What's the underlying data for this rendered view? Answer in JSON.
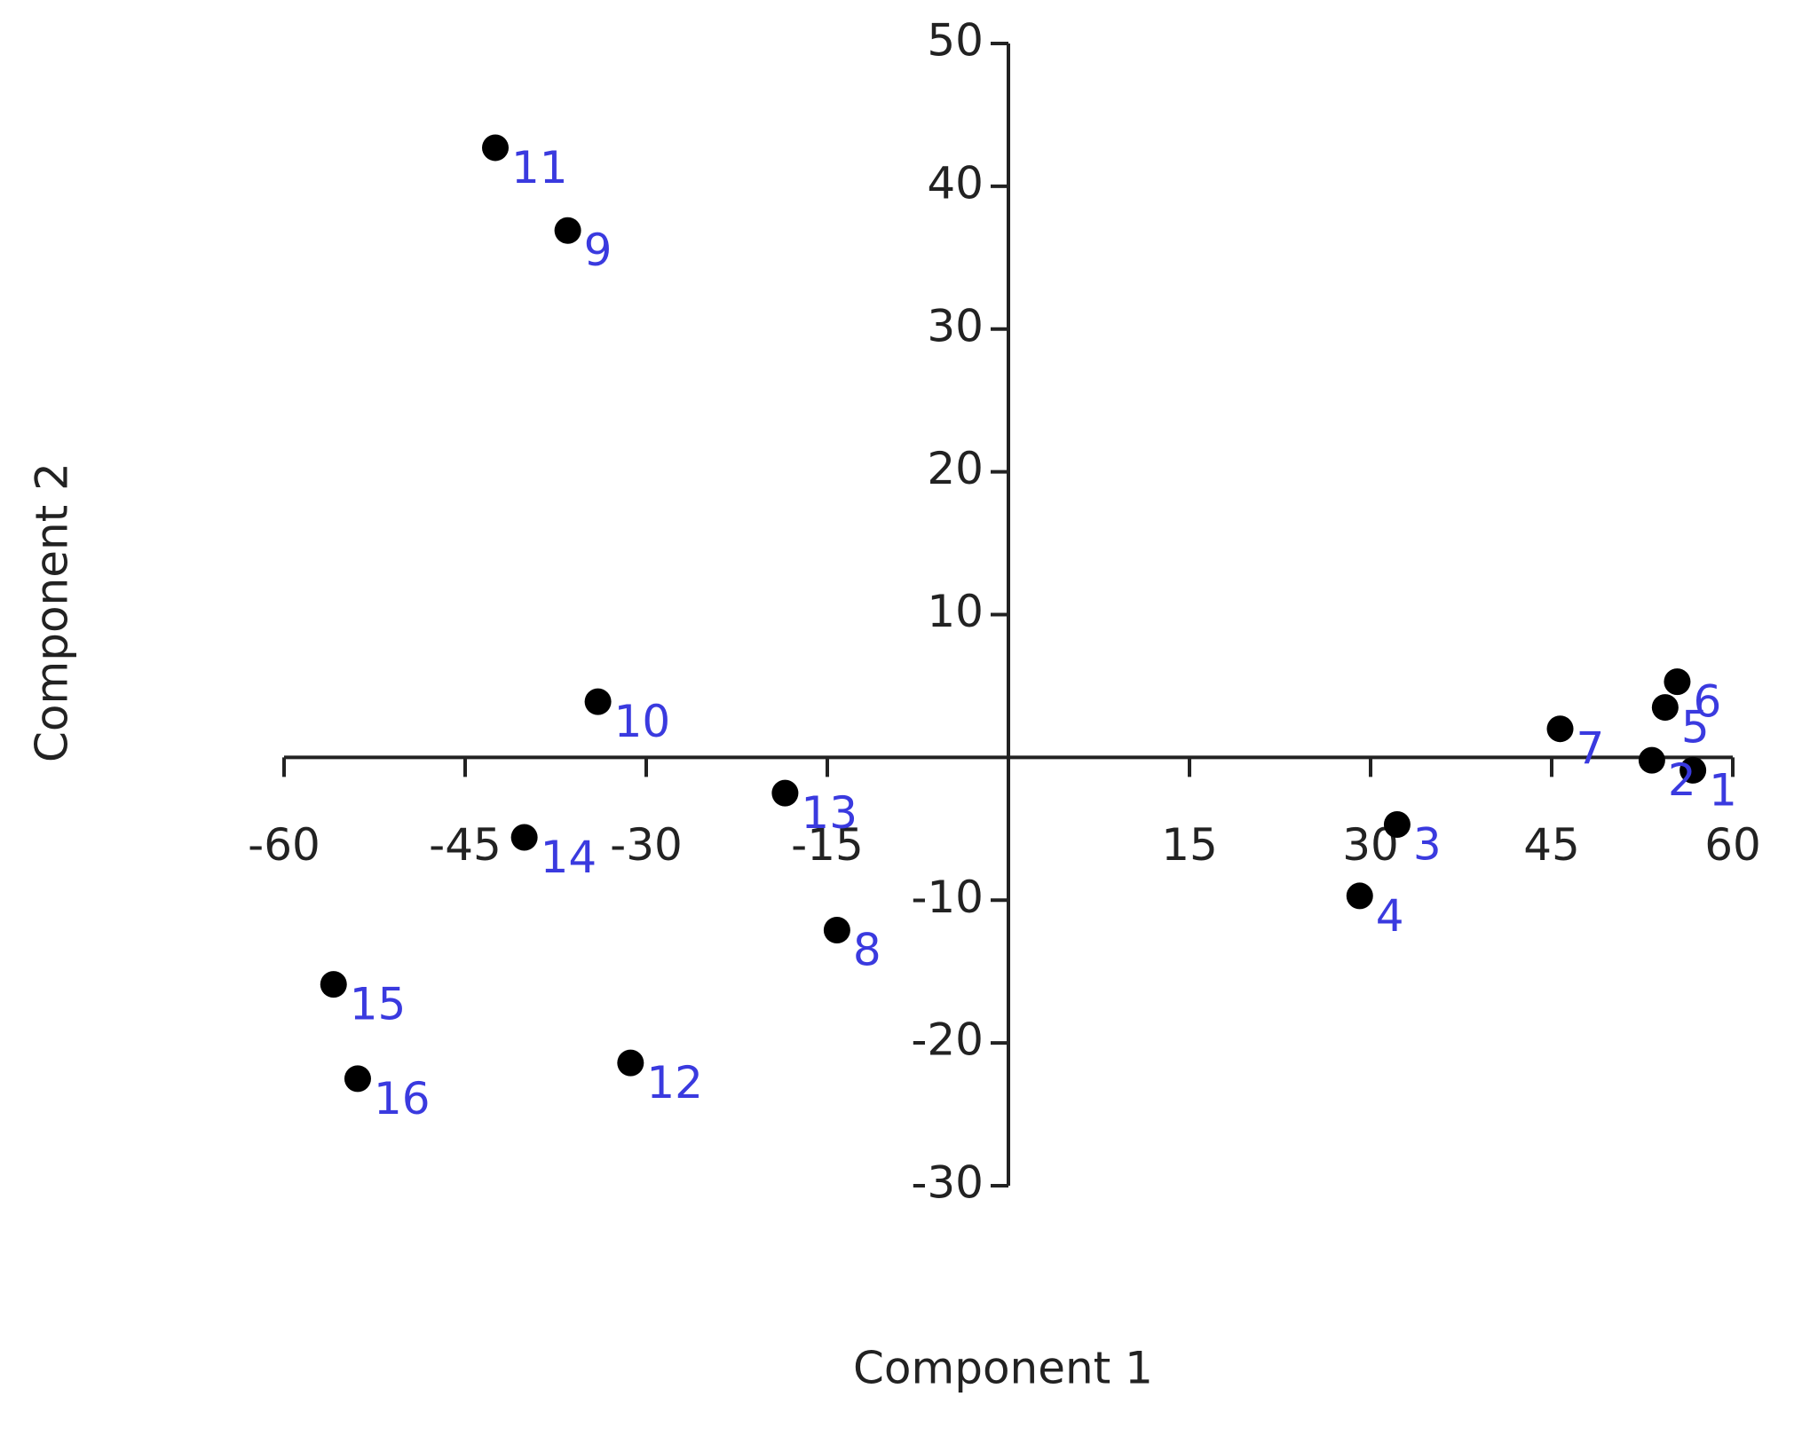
{
  "chart_data": {
    "type": "scatter",
    "x_label": "Component 1",
    "y_label": "Component 2",
    "labels": [
      "1",
      "2",
      "3",
      "4",
      "5",
      "6",
      "7",
      "8",
      "9",
      "10",
      "11",
      "12",
      "13",
      "14",
      "15",
      "16"
    ],
    "x": [
      56.7,
      53.3,
      32.2,
      29.1,
      54.4,
      55.4,
      45.7,
      -14.2,
      -36.5,
      -34.0,
      -42.5,
      -31.3,
      -18.5,
      -40.1,
      -55.9,
      -53.9
    ],
    "values": [
      -0.9,
      -0.2,
      -4.7,
      -9.7,
      3.5,
      5.3,
      2.0,
      -12.1,
      36.9,
      3.9,
      42.7,
      -21.4,
      -2.5,
      -5.6,
      -15.9,
      -22.5
    ],
    "color": "#000000",
    "label_color": "#3a3adf",
    "xlim": [
      -60,
      60
    ],
    "ylim": [
      -30,
      50
    ],
    "xticks": [
      -60,
      -45,
      -30,
      -15,
      15,
      30,
      45,
      60
    ],
    "yticks": [
      -30,
      -20,
      -10,
      10,
      20,
      30,
      40,
      50
    ]
  }
}
